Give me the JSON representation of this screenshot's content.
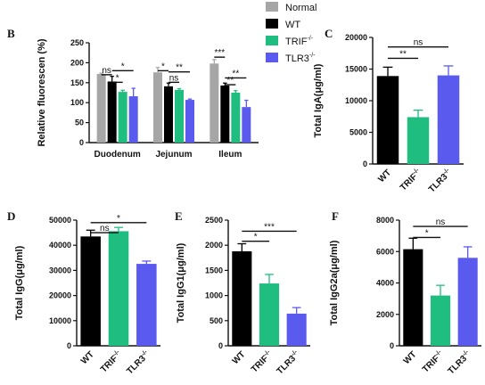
{
  "colors": {
    "Normal": "#a6a6a6",
    "WT": "#000000",
    "TRIF-/-": "#1fbe80",
    "TLR3-/-": "#5a5aee",
    "axis": "#111111"
  },
  "legend": [
    {
      "key": "Normal",
      "label": "Normal"
    },
    {
      "key": "WT",
      "label": "WT"
    },
    {
      "key": "TRIF-/-",
      "label": "TRIF",
      "sup": "-/-"
    },
    {
      "key": "TLR3-/-",
      "label": "TLR3",
      "sup": "-/-"
    }
  ],
  "chart_data": [
    {
      "panel": "B",
      "type": "bar",
      "ylabel": "Relative fluorescen (%)",
      "ylim": [
        0,
        250
      ],
      "yticks": [
        0,
        50,
        100,
        150,
        200,
        250
      ],
      "categories": [
        "Duodenum",
        "Jejunum",
        "Ileum"
      ],
      "series": [
        {
          "name": "Normal",
          "values": [
            172,
            176,
            198
          ],
          "errors": [
            2,
            12,
            10
          ]
        },
        {
          "name": "WT",
          "values": [
            153,
            141,
            143
          ],
          "errors": [
            13,
            8,
            6
          ]
        },
        {
          "name": "TRIF-/-",
          "values": [
            127,
            132,
            125
          ],
          "errors": [
            4,
            3,
            5
          ]
        },
        {
          "name": "TLR3-/-",
          "values": [
            116,
            107,
            89
          ],
          "errors": [
            20,
            2,
            17
          ]
        }
      ],
      "significance": [
        {
          "text": "ns",
          "cat": 0,
          "from": 0,
          "to": 1,
          "y": 170
        },
        {
          "text": "*",
          "cat": 0,
          "from": 1,
          "to": 3,
          "y": 180
        },
        {
          "text": "*",
          "cat": 0,
          "from": 1,
          "to": 2,
          "y": 151
        },
        {
          "text": "*",
          "cat": 1,
          "from": 0,
          "to": 1,
          "y": 180
        },
        {
          "text": "**",
          "cat": 1,
          "from": 1,
          "to": 3,
          "y": 177
        },
        {
          "text": "ns",
          "cat": 1,
          "from": 1,
          "to": 2,
          "y": 151
        },
        {
          "text": "***",
          "cat": 2,
          "from": 0,
          "to": 1,
          "y": 214
        },
        {
          "text": "**",
          "cat": 2,
          "from": 1,
          "to": 3,
          "y": 162
        },
        {
          "text": "**",
          "cat": 2,
          "from": 1,
          "to": 2,
          "y": 145
        }
      ]
    },
    {
      "panel": "C",
      "type": "bar",
      "ylabel": "Total IgA(μg/ml)",
      "ylim": [
        0,
        20000
      ],
      "yticks": [
        0,
        5000,
        10000,
        15000,
        20000
      ],
      "categories": [
        "WT",
        "TRIF-/-",
        "TLR3-/-"
      ],
      "values": [
        13900,
        7400,
        14000
      ],
      "errors": [
        1400,
        1100,
        1500
      ],
      "significance": [
        {
          "text": "**",
          "from": 0,
          "to": 1,
          "y": 16700
        },
        {
          "text": "ns",
          "from": 0,
          "to": 2,
          "y": 18500
        }
      ]
    },
    {
      "panel": "D",
      "type": "bar",
      "ylabel": "Total IgG(μg/ml)",
      "ylim": [
        0,
        50000
      ],
      "yticks": [
        0,
        10000,
        20000,
        30000,
        40000,
        50000
      ],
      "categories": [
        "WT",
        "TRIF-/-",
        "TLR3-/-"
      ],
      "values": [
        43500,
        45600,
        32600
      ],
      "errors": [
        2500,
        1500,
        1100
      ],
      "significance": [
        {
          "text": "ns",
          "from": 0,
          "to": 1,
          "y": 45000
        },
        {
          "text": "*",
          "from": 0,
          "to": 2,
          "y": 49000
        }
      ]
    },
    {
      "panel": "E",
      "type": "bar",
      "ylabel": "Total IgG1(μg/ml)",
      "ylim": [
        0,
        2500
      ],
      "yticks": [
        0,
        500,
        1000,
        1500,
        2000,
        2500
      ],
      "categories": [
        "WT",
        "TRIF-/-",
        "TLR3-/-"
      ],
      "values": [
        1880,
        1240,
        640
      ],
      "errors": [
        150,
        180,
        120
      ],
      "significance": [
        {
          "text": "*",
          "from": 0,
          "to": 1,
          "y": 2080
        },
        {
          "text": "***",
          "from": 0,
          "to": 2,
          "y": 2280
        }
      ]
    },
    {
      "panel": "F",
      "type": "bar",
      "ylabel": "Total IgG2a(μg/ml)",
      "ylim": [
        0,
        8000
      ],
      "yticks": [
        0,
        2000,
        4000,
        6000,
        8000
      ],
      "categories": [
        "WT",
        "TRIF-/-",
        "TLR3-/-"
      ],
      "values": [
        6150,
        3200,
        5600
      ],
      "errors": [
        700,
        650,
        700
      ],
      "significance": [
        {
          "text": "*",
          "from": 0,
          "to": 1,
          "y": 6900
        },
        {
          "text": "ns",
          "from": 0,
          "to": 2,
          "y": 7600
        }
      ]
    }
  ]
}
